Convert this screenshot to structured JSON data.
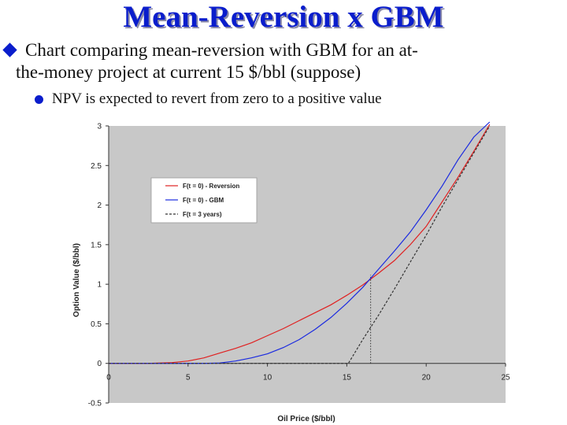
{
  "slide": {
    "title": "Mean-Reversion x GBM",
    "bullet1_line1": "Chart comparing mean-reversion with GBM for an at-",
    "bullet1_line2": "the-money project at current 15 $/bbl (suppose)",
    "bullet2": "NPV is expected to revert from zero to a positive value",
    "colors": {
      "title": "#0a1dcc",
      "bullet": "#0a1dcc"
    }
  },
  "chart_data": {
    "type": "line",
    "xlabel": "Oil Price ($/bbl)",
    "ylabel": "Option Value ($/bbl)",
    "xlim": [
      0,
      25
    ],
    "ylim": [
      -0.5,
      3
    ],
    "xticks": [
      "0",
      "5",
      "10",
      "15",
      "20",
      "25"
    ],
    "yticks": [
      "-0.5",
      "0",
      "0.5",
      "1",
      "1.5",
      "2",
      "2.5",
      "3"
    ],
    "grid": false,
    "legend_position": "upper-left",
    "background": "#c8c8c8",
    "series": [
      {
        "name": "F(t = 0) - Reversion",
        "color": "#e02020",
        "style": "solid",
        "x": [
          0,
          2.5,
          4,
          5,
          6,
          7,
          8,
          9,
          10,
          11,
          12,
          13,
          14,
          15,
          16,
          17,
          18,
          19,
          20,
          21,
          22,
          23,
          24
        ],
        "y": [
          0,
          0,
          0.01,
          0.03,
          0.07,
          0.13,
          0.19,
          0.26,
          0.35,
          0.44,
          0.54,
          0.64,
          0.74,
          0.86,
          0.99,
          1.14,
          1.3,
          1.5,
          1.73,
          2.04,
          2.35,
          2.68,
          3.02
        ]
      },
      {
        "name": "F(t = 0) - GBM",
        "color": "#1a2ae0",
        "style": "solid",
        "x": [
          0,
          6,
          7,
          8,
          9,
          10,
          11,
          12,
          13,
          14,
          15,
          16,
          17,
          18,
          19,
          20,
          21,
          22,
          23,
          24
        ],
        "y": [
          0,
          0,
          0.005,
          0.03,
          0.07,
          0.12,
          0.2,
          0.3,
          0.43,
          0.58,
          0.76,
          0.96,
          1.19,
          1.42,
          1.66,
          1.94,
          2.24,
          2.57,
          2.86,
          3.05
        ]
      },
      {
        "name": "F(t = 3 years)",
        "color": "#333333",
        "style": "dashed",
        "x": [
          0,
          14.8,
          15.1,
          16,
          17,
          18,
          19,
          20,
          21,
          22,
          23,
          24
        ],
        "y": [
          0,
          0,
          0,
          0.3,
          0.61,
          0.94,
          1.28,
          1.62,
          1.98,
          2.32,
          2.66,
          3.0
        ]
      }
    ],
    "reference_line": {
      "x": 16.5,
      "y_from": 0,
      "y_to": 1.12,
      "style": "dotted"
    }
  }
}
